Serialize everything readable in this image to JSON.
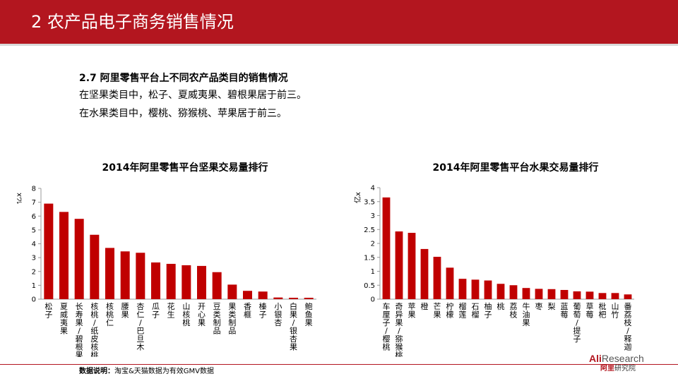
{
  "header": {
    "title": "2 农产品电子商务销售情况"
  },
  "intro": {
    "heading": "2.7 阿里零售平台上不同农产品类目的销售情况",
    "line1": "在坚果类目中，松子、夏威夷果、碧根果居于前三。",
    "line2": "在水果类目中，樱桃、猕猴桃、苹果居于前三。"
  },
  "chart_data": [
    {
      "type": "bar",
      "title": "2014年阿里零售平台坚果交易量排行",
      "ylabel": "亿x",
      "ylim": [
        0,
        8
      ],
      "yticks": [
        0,
        1,
        2,
        3,
        4,
        5,
        6,
        7,
        8
      ],
      "categories": [
        "松子",
        "夏威夷果",
        "长寿果/碧根果",
        "核桃/纸皮核桃",
        "核桃仁",
        "腰果",
        "杏仁/巴旦木",
        "瓜子",
        "花生",
        "山核桃",
        "开心果",
        "豆类制品",
        "果类制品",
        "香榧",
        "榛子",
        "小银杏",
        "白果/银杏果",
        "鲍鱼果"
      ],
      "values": [
        6.9,
        6.3,
        5.8,
        4.65,
        3.7,
        3.45,
        3.35,
        2.65,
        2.55,
        2.45,
        2.4,
        1.95,
        1.05,
        0.6,
        0.55,
        0.12,
        0.1,
        0.1
      ],
      "bar_color": "#c00000",
      "grid": false
    },
    {
      "type": "bar",
      "title": "2014年阿里零售平台水果交易量排行",
      "ylabel": "亿x",
      "ylim": [
        0,
        4
      ],
      "yticks": [
        0,
        0.5,
        1,
        1.5,
        2,
        2.5,
        3,
        3.5,
        4
      ],
      "categories": [
        "车厘子/樱桃",
        "奇异果/猕猴桃",
        "苹果",
        "橙",
        "芒果",
        "柠檬",
        "榴莲",
        "石榴",
        "柚子",
        "桃",
        "荔枝",
        "牛油果",
        "枣",
        "梨",
        "蓝莓",
        "葡萄/提子",
        "草莓",
        "枇杷",
        "山竹",
        "番荔枝/释迦"
      ],
      "values": [
        3.65,
        2.43,
        2.38,
        1.8,
        1.52,
        1.13,
        0.73,
        0.7,
        0.67,
        0.55,
        0.5,
        0.4,
        0.37,
        0.36,
        0.33,
        0.28,
        0.27,
        0.22,
        0.22,
        0.17
      ],
      "bar_color": "#c00000",
      "grid": false
    }
  ],
  "footnote": {
    "label": "数据说明：",
    "text": "淘宝&天猫数据为有效GMV数据"
  },
  "logo": {
    "prefix": "Ali",
    "suffix": "Research",
    "sub_red": "阿里",
    "sub_rest": "研究院"
  }
}
